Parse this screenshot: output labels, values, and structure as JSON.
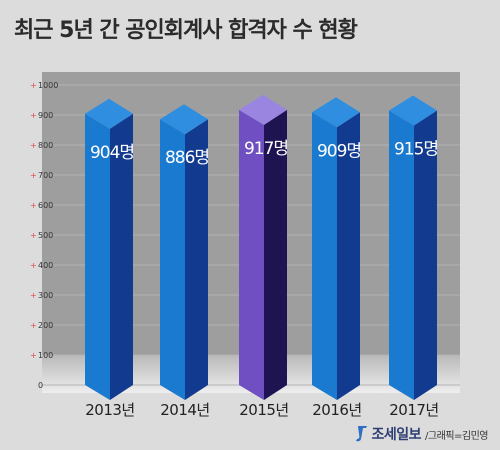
{
  "title": "최근 5년 간 공인회계사 합격자 수 현황",
  "credit": {
    "brand": "조세일보",
    "sub": "/그래픽=김민영"
  },
  "colors": {
    "background": "#dcdcdc",
    "bar_front": "#1a7ad0",
    "bar_side": "#123b90",
    "bar_top": "#2f8ee0",
    "highlight_front": "#6f4fc1",
    "highlight_side": "#1f1452",
    "highlight_top": "#9a86e0",
    "tick_plus": "#e04a4a"
  },
  "chart_data": {
    "type": "bar",
    "categories": [
      "2013년",
      "2014년",
      "2015년",
      "2016년",
      "2017년"
    ],
    "values": [
      904,
      886,
      917,
      909,
      915
    ],
    "data_labels": [
      "904명",
      "886명",
      "917명",
      "909명",
      "915명"
    ],
    "highlight_index": 2,
    "ylim": [
      0,
      1000
    ],
    "yticks": [
      "0",
      "100",
      "200",
      "300",
      "400",
      "500",
      "600",
      "700",
      "800",
      "900",
      "1000"
    ],
    "title": "최근 5년 간 공인회계사 합격자 수 현황",
    "xlabel": "",
    "ylabel": "",
    "grid": true
  }
}
